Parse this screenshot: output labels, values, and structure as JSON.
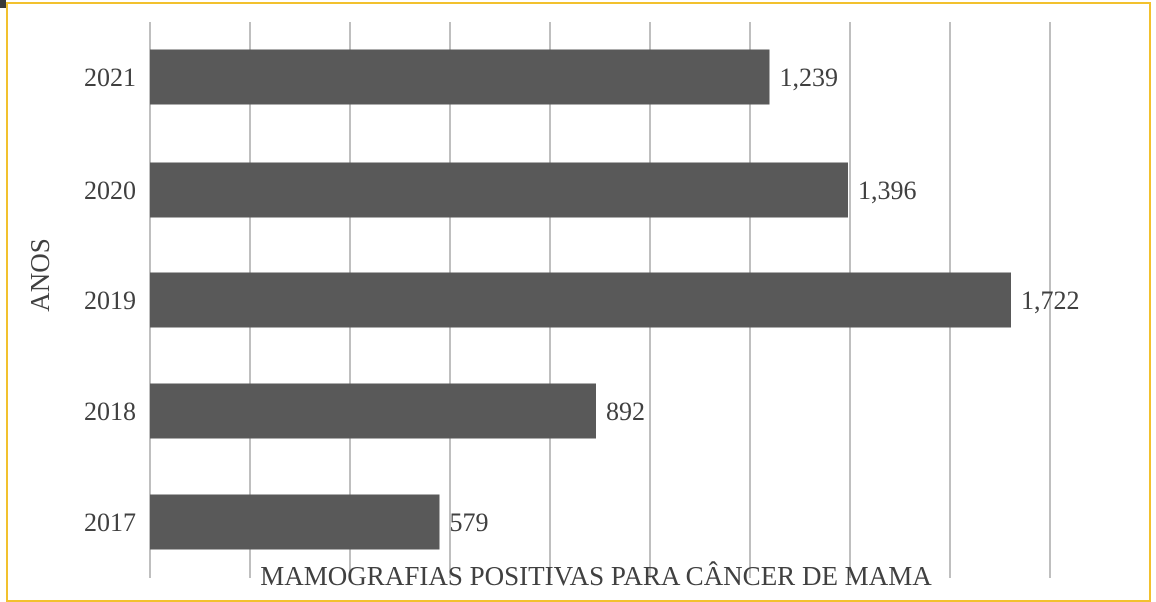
{
  "chart_data": {
    "type": "bar",
    "orientation": "horizontal",
    "categories": [
      "2021",
      "2020",
      "2019",
      "2018",
      "2017"
    ],
    "values": [
      1239,
      1396,
      1722,
      892,
      579
    ],
    "value_labels": [
      "1,239",
      "1,396",
      "1,722",
      "892",
      "579"
    ],
    "title": "",
    "xlabel": "MAMOGRAFIAS POSITIVAS PARA CÂNCER DE MAMA",
    "ylabel": "ANOS",
    "xlim": [
      0,
      2000
    ],
    "grid": "vertical",
    "legend": "none",
    "bar_color": "#595959",
    "grid_color": "#bfbfbf",
    "frame_color": "#f2c12e"
  }
}
